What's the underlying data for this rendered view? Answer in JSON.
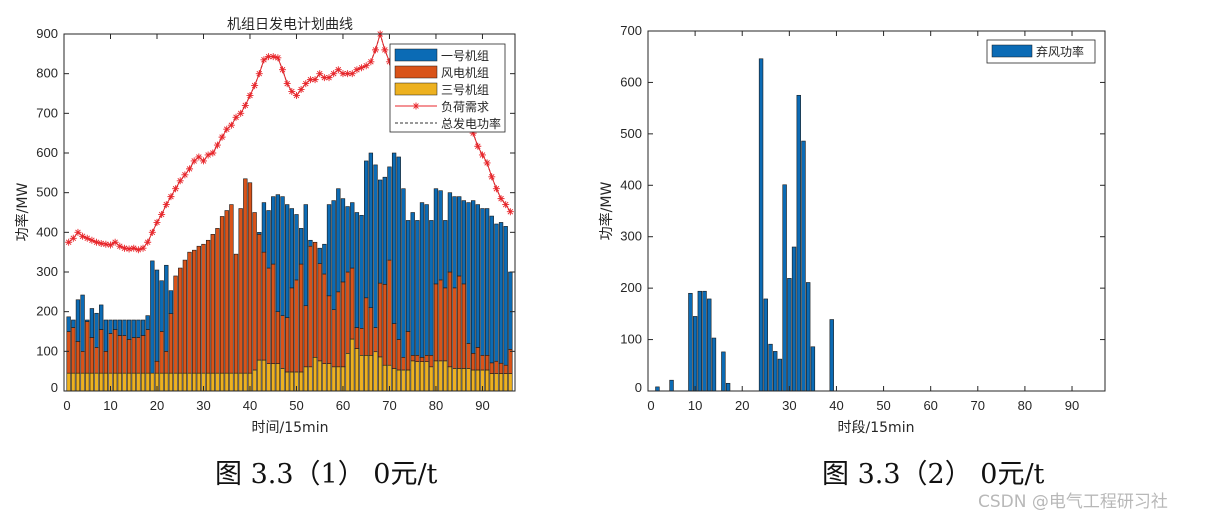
{
  "chart_data": [
    {
      "type": "bar",
      "stacked": true,
      "title": "机组日发电计划曲线",
      "xlabel": "时间/15min",
      "ylabel": "功率/MW",
      "xlim": [
        0,
        97
      ],
      "ylim": [
        0,
        900
      ],
      "xticks": [
        0,
        10,
        20,
        30,
        40,
        50,
        60,
        70,
        80,
        90
      ],
      "yticks": [
        0,
        100,
        200,
        300,
        400,
        500,
        600,
        700,
        800,
        900
      ],
      "legend_position": "top-right",
      "colors": {
        "unit1": "#0b6bb5",
        "wind": "#d95319",
        "unit3": "#edb120",
        "load": "#e8262b",
        "total": "#333333"
      },
      "legend": [
        "一号机组",
        "风电机组",
        "三号机组",
        "负荷需求",
        "总发电功率"
      ],
      "series": [
        {
          "name": "三号机组",
          "values": [
            45,
            45,
            45,
            45,
            45,
            45,
            45,
            45,
            45,
            45,
            45,
            45,
            45,
            45,
            45,
            45,
            45,
            45,
            45,
            45,
            45,
            45,
            45,
            45,
            45,
            45,
            45,
            45,
            45,
            45,
            45,
            45,
            45,
            45,
            45,
            45,
            45,
            45,
            45,
            45,
            53,
            78,
            78,
            69,
            69,
            69,
            57,
            48,
            48,
            48,
            48,
            61,
            61,
            85,
            76,
            69,
            69,
            61,
            61,
            61,
            95,
            131,
            107,
            90,
            90,
            90,
            99,
            86,
            65,
            65,
            57,
            53,
            53,
            53,
            76,
            74,
            74,
            74,
            61,
            76,
            76,
            76,
            61,
            57,
            57,
            57,
            57,
            53,
            53,
            53,
            53,
            44,
            44,
            44,
            44,
            44
          ]
        },
        {
          "name": "风电机组",
          "values": [
            105,
            115,
            80,
            55,
            130,
            90,
            65,
            110,
            55,
            100,
            110,
            95,
            95,
            85,
            90,
            90,
            95,
            110,
            0,
            30,
            105,
            55,
            150,
            245,
            265,
            285,
            305,
            310,
            320,
            325,
            335,
            350,
            365,
            395,
            410,
            425,
            300,
            415,
            490,
            480,
            397,
            317,
            272,
            241,
            251,
            131,
            133,
            137,
            212,
            232,
            272,
            154,
            304,
            290,
            245,
            226,
            171,
            144,
            189,
            214,
            205,
            179,
            53,
            68,
            145,
            120,
            61,
            186,
            204,
            265,
            113,
            77,
            32,
            97,
            14,
            16,
            11,
            16,
            29,
            194,
            204,
            184,
            239,
            203,
            233,
            213,
            63,
            42,
            57,
            37,
            37,
            27,
            31,
            26,
            21,
            61
          ]
        },
        {
          "name": "一号机组",
          "values": [
            37,
            19,
            105,
            142,
            4,
            73,
            86,
            62,
            79,
            34,
            24,
            39,
            39,
            49,
            44,
            44,
            39,
            35,
            283,
            230,
            128,
            217,
            58,
            0,
            0,
            0,
            0,
            0,
            0,
            0,
            0,
            0,
            0,
            0,
            0,
            0,
            0,
            0,
            0,
            0,
            0,
            5,
            125,
            145,
            170,
            295,
            300,
            285,
            200,
            165,
            90,
            255,
            15,
            0,
            39,
            75,
            230,
            275,
            260,
            210,
            165,
            165,
            290,
            285,
            345,
            390,
            410,
            260,
            270,
            235,
            430,
            460,
            425,
            280,
            360,
            340,
            390,
            380,
            340,
            240,
            225,
            170,
            200,
            230,
            200,
            210,
            355,
            385,
            360,
            370,
            370,
            370,
            346,
            355,
            350,
            195
          ]
        },
        {
          "name": "负荷需求",
          "kind": "line",
          "values": [
            375,
            385,
            400,
            390,
            385,
            380,
            375,
            372,
            370,
            368,
            375,
            365,
            360,
            358,
            360,
            356,
            360,
            375,
            400,
            425,
            445,
            470,
            490,
            510,
            530,
            545,
            560,
            580,
            590,
            580,
            595,
            600,
            620,
            640,
            660,
            670,
            690,
            700,
            720,
            745,
            770,
            800,
            835,
            843,
            843,
            840,
            810,
            775,
            755,
            745,
            760,
            775,
            785,
            785,
            800,
            790,
            790,
            800,
            810,
            800,
            800,
            800,
            810,
            815,
            820,
            830,
            860,
            900,
            860,
            830,
            820,
            810,
            800,
            795,
            790,
            780,
            775,
            770,
            760,
            750,
            740,
            730,
            720,
            705,
            690,
            680,
            665,
            650,
            617,
            595,
            575,
            540,
            510,
            485,
            470,
            452
          ]
        },
        {
          "name": "总发电功率",
          "kind": "dashed-line",
          "values": "same as 负荷需求"
        }
      ]
    },
    {
      "type": "bar",
      "title": "",
      "xlabel": "时段/15min",
      "ylabel": "功率/MW",
      "xlim": [
        0,
        97
      ],
      "ylim": [
        0,
        700
      ],
      "xticks": [
        0,
        10,
        20,
        30,
        40,
        50,
        60,
        70,
        80,
        90
      ],
      "yticks": [
        0,
        100,
        200,
        300,
        400,
        500,
        600,
        700
      ],
      "legend_position": "top-right",
      "legend": [
        "弃风功率"
      ],
      "color": "#0b6bb5",
      "x": [
        2,
        5,
        9,
        10,
        11,
        12,
        13,
        14,
        16,
        17,
        24,
        25,
        26,
        27,
        28,
        29,
        30,
        31,
        32,
        33,
        34,
        35,
        39
      ],
      "values": [
        8,
        21,
        190,
        145,
        194,
        194,
        179,
        103,
        76,
        15,
        646,
        179,
        91,
        77,
        62,
        401,
        219,
        280,
        575,
        486,
        211,
        86,
        139
      ]
    }
  ],
  "captions": [
    "图 3.3（1） 0元/t",
    "图 3.3（2） 0元/t"
  ],
  "watermark": "CSDN @电气工程研习社"
}
